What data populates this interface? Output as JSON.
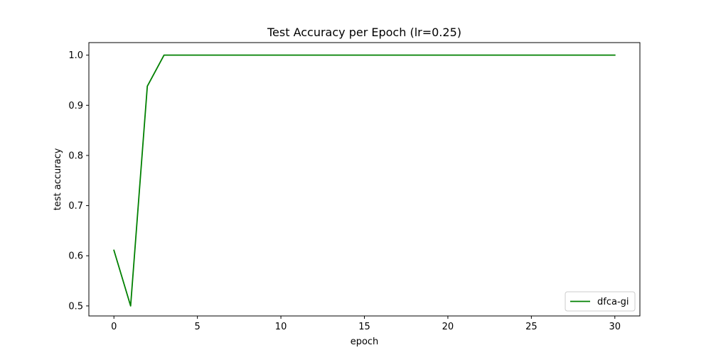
{
  "chart_data": {
    "type": "line",
    "title": "Test Accuracy per Epoch (lr=0.25)",
    "xlabel": "epoch",
    "ylabel": "test accuracy",
    "xlim": [
      -1.5,
      31.5
    ],
    "ylim": [
      0.48,
      1.025
    ],
    "xticks": [
      0,
      5,
      10,
      15,
      20,
      25,
      30
    ],
    "xtick_labels": [
      "0",
      "5",
      "10",
      "15",
      "20",
      "25",
      "30"
    ],
    "yticks": [
      0.5,
      0.6,
      0.7,
      0.8,
      0.9,
      1.0
    ],
    "ytick_labels": [
      "0.5",
      "0.6",
      "0.7",
      "0.8",
      "0.9",
      "1.0"
    ],
    "grid": false,
    "legend_position": "lower-right",
    "series": [
      {
        "name": "dfca-gi",
        "color": "#008000",
        "x": [
          0,
          1,
          2,
          3,
          4,
          5,
          6,
          7,
          8,
          9,
          10,
          11,
          12,
          13,
          14,
          15,
          16,
          17,
          18,
          19,
          20,
          21,
          22,
          23,
          24,
          25,
          26,
          27,
          28,
          29,
          30
        ],
        "y": [
          0.611,
          0.5,
          0.938,
          1.0,
          1.0,
          1.0,
          1.0,
          1.0,
          1.0,
          1.0,
          1.0,
          1.0,
          1.0,
          1.0,
          1.0,
          1.0,
          1.0,
          1.0,
          1.0,
          1.0,
          1.0,
          1.0,
          1.0,
          1.0,
          1.0,
          1.0,
          1.0,
          1.0,
          1.0,
          1.0,
          1.0
        ]
      }
    ]
  }
}
